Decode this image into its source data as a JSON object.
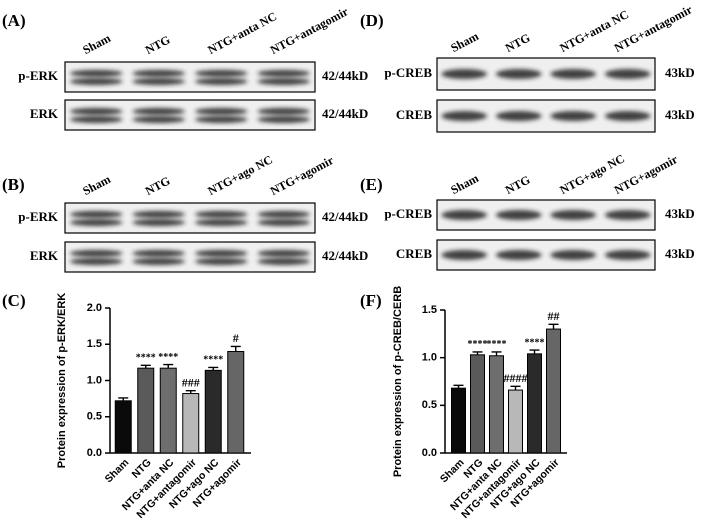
{
  "blots": [
    {
      "label": "(A)",
      "lanes": [
        "Sham",
        "NTG",
        "NTG+anta NC",
        "NTG+antagomir"
      ],
      "rows": [
        {
          "protein": "p-ERK",
          "size": "42/44kD"
        },
        {
          "protein": "ERK",
          "size": "42/44kD"
        }
      ]
    },
    {
      "label": "(B)",
      "lanes": [
        "Sham",
        "NTG",
        "NTG+ago NC",
        "NTG+agomir"
      ],
      "rows": [
        {
          "protein": "p-ERK",
          "size": "42/44kD"
        },
        {
          "protein": "ERK",
          "size": "42/44kD"
        }
      ]
    },
    {
      "label": "(D)",
      "lanes": [
        "Sham",
        "NTG",
        "NTG+anta NC",
        "NTG+antagomir"
      ],
      "rows": [
        {
          "protein": "p-CREB",
          "size": "43kD"
        },
        {
          "protein": "CREB",
          "size": "43kD"
        }
      ]
    },
    {
      "label": "(E)",
      "lanes": [
        "Sham",
        "NTG",
        "NTG+ago NC",
        "NTG+agomir"
      ],
      "rows": [
        {
          "protein": "p-CREB",
          "size": "43kD"
        },
        {
          "protein": "CREB",
          "size": "43kD"
        }
      ]
    }
  ],
  "chart_data": [
    {
      "type": "bar",
      "label": "(C)",
      "y_label": "Protein expression of p-ERK/ERK",
      "categories": [
        "Sham",
        "NTG",
        "NTG+anta NC",
        "NTG+antagomir",
        "NTG+ago NC",
        "NTG+agomir"
      ],
      "values": [
        0.72,
        1.17,
        1.17,
        0.82,
        1.14,
        1.4
      ],
      "errors": [
        0.04,
        0.04,
        0.05,
        0.04,
        0.04,
        0.07
      ],
      "annotations": [
        null,
        "****",
        "****",
        "###",
        "****",
        "#"
      ],
      "colors": [
        "#0a0a0a",
        "#5a5a5a",
        "#6e6e6e",
        "#b8b8b8",
        "#2a2a2a",
        "#666666"
      ],
      "ylim": [
        0,
        2.0
      ],
      "yticks": [
        {
          "value": 0,
          "label": "0.0"
        },
        0.5,
        {
          "value": 1,
          "label": "1.0"
        },
        1.5,
        {
          "value": 2,
          "label": "2.0"
        }
      ]
    },
    {
      "type": "bar",
      "label": "(F)",
      "y_label": "Protein expression of p-CREB/CERB",
      "categories": [
        "Sham",
        "NTG",
        "NTG+anta NC",
        "NTG+antagomir",
        "NTG+ago NC",
        "NTG+agomir"
      ],
      "values": [
        0.68,
        1.03,
        1.02,
        0.66,
        1.04,
        1.3
      ],
      "errors": [
        0.03,
        0.03,
        0.04,
        0.04,
        0.04,
        0.05
      ],
      "annotations": [
        null,
        "****",
        "****",
        "####",
        "****",
        "##"
      ],
      "colors": [
        "#0a0a0a",
        "#5a5a5a",
        "#6e6e6e",
        "#b8b8b8",
        "#2a2a2a",
        "#666666"
      ],
      "ylim": [
        0,
        1.5
      ],
      "yticks": [
        {
          "value": 0,
          "label": "0.0"
        },
        0.5,
        {
          "value": 1,
          "label": "1.0"
        },
        1.5
      ]
    }
  ]
}
